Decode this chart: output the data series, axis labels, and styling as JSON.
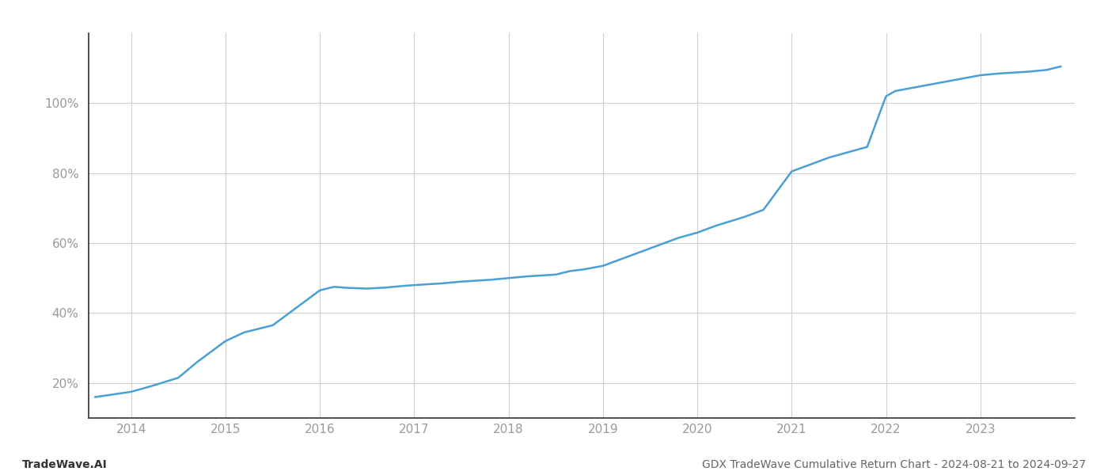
{
  "title": "GDX TradeWave Cumulative Return Chart - 2024-08-21 to 2024-09-27",
  "left_label": "TradeWave.AI",
  "line_color": "#4a9fd4",
  "background_color": "#ffffff",
  "grid_color": "#d0d0d0",
  "x_years": [
    2013.62,
    2013.75,
    2014.0,
    2014.2,
    2014.5,
    2014.7,
    2015.0,
    2015.2,
    2015.5,
    2015.7,
    2016.0,
    2016.15,
    2016.3,
    2016.5,
    2016.7,
    2016.9,
    2017.0,
    2017.3,
    2017.5,
    2017.8,
    2018.0,
    2018.2,
    2018.5,
    2018.65,
    2018.8,
    2019.0,
    2019.2,
    2019.4,
    2019.6,
    2019.8,
    2020.0,
    2020.2,
    2020.5,
    2020.7,
    2021.0,
    2021.2,
    2021.4,
    2021.6,
    2021.8,
    2022.0,
    2022.1,
    2022.3,
    2022.5,
    2022.7,
    2022.9,
    2023.0,
    2023.2,
    2023.5,
    2023.7,
    2023.85
  ],
  "y_values": [
    16.0,
    16.5,
    17.5,
    19.0,
    21.5,
    26.0,
    32.0,
    34.5,
    36.5,
    40.5,
    46.5,
    47.5,
    47.2,
    47.0,
    47.3,
    47.8,
    48.0,
    48.5,
    49.0,
    49.5,
    50.0,
    50.5,
    51.0,
    52.0,
    52.5,
    53.5,
    55.5,
    57.5,
    59.5,
    61.5,
    63.0,
    65.0,
    67.5,
    69.5,
    80.5,
    82.5,
    84.5,
    86.0,
    87.5,
    102.0,
    103.5,
    104.5,
    105.5,
    106.5,
    107.5,
    108.0,
    108.5,
    109.0,
    109.5,
    110.5
  ],
  "ylim": [
    10,
    120
  ],
  "yticks": [
    20,
    40,
    60,
    80,
    100
  ],
  "xticks": [
    2014,
    2015,
    2016,
    2017,
    2018,
    2019,
    2020,
    2021,
    2022,
    2023
  ],
  "xlim": [
    2013.55,
    2024.0
  ],
  "line_width": 1.8
}
